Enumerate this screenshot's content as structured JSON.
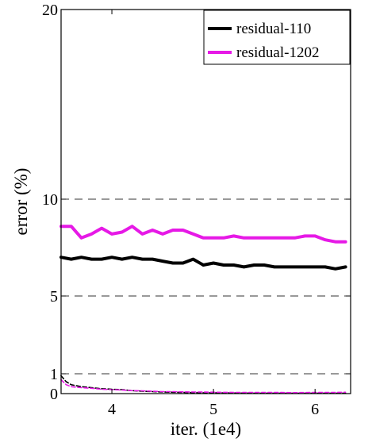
{
  "chart_data": {
    "type": "line",
    "title": "",
    "xlabel": "iter. (1e4)",
    "ylabel": "error (%)",
    "xlim": [
      3.5,
      6.35
    ],
    "ylim": [
      0,
      20
    ],
    "x_ticks": [
      4,
      5,
      6
    ],
    "x_tick_labels": [
      "4",
      "5",
      "6"
    ],
    "y_ticks": [
      0,
      1,
      5,
      10,
      20
    ],
    "y_tick_labels": [
      "0",
      "1",
      "5",
      "10",
      "20"
    ],
    "grid": "horizontal dashed at y ticks",
    "legend_position": "top-right",
    "series": [
      {
        "name": "residual-110",
        "style": "solid",
        "color": "#000000",
        "x": [
          3.5,
          3.6,
          3.7,
          3.8,
          3.9,
          4.0,
          4.1,
          4.2,
          4.3,
          4.4,
          4.5,
          4.6,
          4.7,
          4.8,
          4.9,
          5.0,
          5.1,
          5.2,
          5.3,
          5.4,
          5.5,
          5.6,
          5.7,
          5.8,
          5.9,
          6.0,
          6.1,
          6.2,
          6.3
        ],
        "y": [
          7.0,
          6.9,
          7.0,
          6.9,
          6.9,
          7.0,
          6.9,
          7.0,
          6.9,
          6.9,
          6.8,
          6.7,
          6.7,
          6.9,
          6.6,
          6.7,
          6.6,
          6.6,
          6.5,
          6.6,
          6.6,
          6.5,
          6.5,
          6.5,
          6.5,
          6.5,
          6.5,
          6.4,
          6.5
        ]
      },
      {
        "name": "residual-1202",
        "style": "solid",
        "color": "#E619E6",
        "x": [
          3.5,
          3.6,
          3.7,
          3.8,
          3.9,
          4.0,
          4.1,
          4.2,
          4.3,
          4.4,
          4.5,
          4.6,
          4.7,
          4.8,
          4.9,
          5.0,
          5.1,
          5.2,
          5.3,
          5.4,
          5.5,
          5.6,
          5.7,
          5.8,
          5.9,
          6.0,
          6.1,
          6.2,
          6.3
        ],
        "y": [
          8.6,
          8.6,
          8.0,
          8.2,
          8.5,
          8.2,
          8.3,
          8.6,
          8.2,
          8.4,
          8.2,
          8.4,
          8.4,
          8.2,
          8.0,
          8.0,
          8.0,
          8.1,
          8.0,
          8.0,
          8.0,
          8.0,
          8.0,
          8.0,
          8.1,
          8.1,
          7.9,
          7.8,
          7.8
        ]
      },
      {
        "name": "",
        "style": "dashed",
        "color": "#000000",
        "x": [
          3.5,
          3.55,
          3.6,
          3.7,
          3.8,
          3.9,
          4.0,
          4.1,
          4.2,
          4.3,
          4.4,
          4.5,
          4.6,
          4.7,
          4.8,
          4.9,
          5.0,
          5.2,
          5.4,
          5.6,
          5.8,
          6.0,
          6.2,
          6.3
        ],
        "y": [
          0.9,
          0.6,
          0.45,
          0.35,
          0.3,
          0.25,
          0.22,
          0.2,
          0.15,
          0.12,
          0.1,
          0.08,
          0.07,
          0.06,
          0.05,
          0.04,
          0.04,
          0.03,
          0.02,
          0.02,
          0.02,
          0.02,
          0.02,
          0.02
        ]
      },
      {
        "name": "",
        "style": "dashed",
        "color": "#E619E6",
        "x": [
          3.5,
          3.55,
          3.6,
          3.7,
          3.8,
          3.9,
          4.0,
          4.1,
          4.2,
          4.3,
          4.4,
          4.5,
          4.6,
          4.7,
          4.8,
          4.9,
          5.0,
          5.2,
          5.4,
          5.6,
          5.8,
          6.0,
          6.2,
          6.3
        ],
        "y": [
          0.7,
          0.45,
          0.35,
          0.3,
          0.27,
          0.22,
          0.2,
          0.18,
          0.15,
          0.14,
          0.12,
          0.1,
          0.1,
          0.09,
          0.08,
          0.08,
          0.07,
          0.06,
          0.06,
          0.06,
          0.05,
          0.06,
          0.06,
          0.07
        ]
      }
    ]
  }
}
